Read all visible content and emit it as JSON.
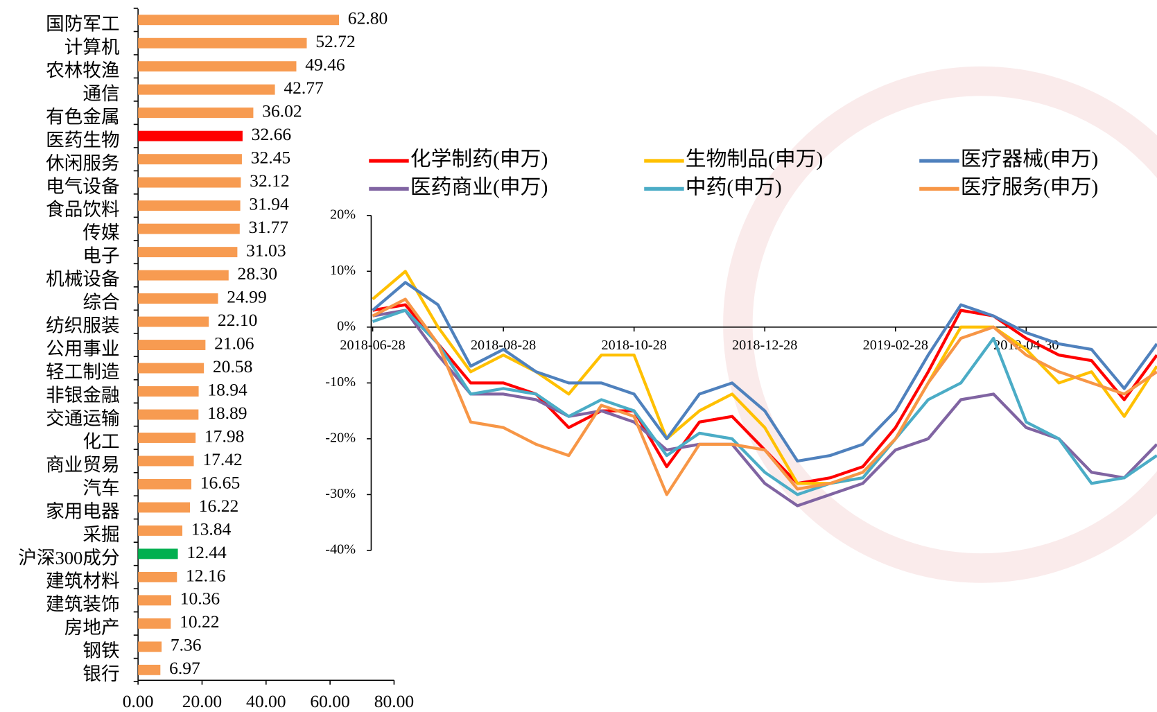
{
  "chart_data": [
    {
      "type": "hbar",
      "categories": [
        "国防军工",
        "计算机",
        "农林牧渔",
        "通信",
        "有色金属",
        "医药生物",
        "休闲服务",
        "电气设备",
        "食品饮料",
        "传媒",
        "电子",
        "机械设备",
        "综合",
        "纺织服装",
        "公用事业",
        "轻工制造",
        "非银金融",
        "交通运输",
        "化工",
        "商业贸易",
        "汽车",
        "家用电器",
        "采掘",
        "沪深300成分",
        "建筑材料",
        "建筑装饰",
        "房地产",
        "钢铁",
        "银行"
      ],
      "values": [
        62.8,
        52.72,
        49.46,
        42.77,
        36.02,
        32.66,
        32.45,
        32.12,
        31.94,
        31.77,
        31.03,
        28.3,
        24.99,
        22.1,
        21.06,
        20.58,
        18.94,
        18.89,
        17.98,
        17.42,
        16.65,
        16.22,
        13.84,
        12.44,
        12.16,
        10.36,
        10.22,
        7.36,
        6.97
      ],
      "value_labels": [
        "62.80",
        "52.72",
        "49.46",
        "42.77",
        "36.02",
        "32.66",
        "32.45",
        "32.12",
        "31.94",
        "31.77",
        "31.03",
        "28.30",
        "24.99",
        "22.10",
        "21.06",
        "20.58",
        "18.94",
        "18.89",
        "17.98",
        "17.42",
        "16.65",
        "16.22",
        "13.84",
        "12.44",
        "12.16",
        "10.36",
        "10.22",
        "7.36",
        "6.97"
      ],
      "colors": [
        "#f79b51",
        "#f79b51",
        "#f79b51",
        "#f79b51",
        "#f79b51",
        "#ff0000",
        "#f79b51",
        "#f79b51",
        "#f79b51",
        "#f79b51",
        "#f79b51",
        "#f79b51",
        "#f79b51",
        "#f79b51",
        "#f79b51",
        "#f79b51",
        "#f79b51",
        "#f79b51",
        "#f79b51",
        "#f79b51",
        "#f79b51",
        "#f79b51",
        "#f79b51",
        "#00b050",
        "#f79b51",
        "#f79b51",
        "#f79b51",
        "#f79b51",
        "#f79b51"
      ],
      "xlim": [
        0,
        80
      ],
      "xticks": [
        {
          "value": 0,
          "label": "0.00"
        },
        {
          "value": 20,
          "label": "20.00"
        },
        {
          "value": 40,
          "label": "40.00"
        },
        {
          "value": 60,
          "label": "60.00"
        },
        {
          "value": 80,
          "label": "80.00"
        }
      ]
    },
    {
      "type": "line",
      "x": [
        "2018-06-28",
        "2018-07-13",
        "2018-07-28",
        "2018-08-13",
        "2018-08-28",
        "2018-09-13",
        "2018-09-28",
        "2018-10-13",
        "2018-10-28",
        "2018-11-13",
        "2018-11-28",
        "2018-12-13",
        "2018-12-28",
        "2019-01-13",
        "2019-01-28",
        "2019-02-13",
        "2019-02-28",
        "2019-03-13",
        "2019-03-28",
        "2019-04-13",
        "2019-04-30",
        "2019-05-13",
        "2019-05-28",
        "2019-06-13",
        "2019-06-28"
      ],
      "xticks": [
        "2018-06-28",
        "2018-08-28",
        "2018-10-28",
        "2018-12-28",
        "2019-02-28",
        "2019-04-30"
      ],
      "ylim": [
        -40,
        20
      ],
      "yticks": [
        {
          "value": -40,
          "label": "-40%"
        },
        {
          "value": -30,
          "label": "-30%"
        },
        {
          "value": -20,
          "label": "-20%"
        },
        {
          "value": -10,
          "label": "-10%"
        },
        {
          "value": 0,
          "label": "0%"
        },
        {
          "value": 10,
          "label": "10%"
        },
        {
          "value": 20,
          "label": "20%"
        }
      ],
      "series": [
        {
          "name": "化学制药(申万)",
          "color": "#ff0000",
          "values": [
            3,
            4,
            -3,
            -10,
            -10,
            -12,
            -18,
            -15,
            -15,
            -25,
            -17,
            -16,
            -22,
            -28,
            -27,
            -25,
            -18,
            -8,
            3,
            2,
            -2,
            -5,
            -6,
            -13,
            -5
          ]
        },
        {
          "name": "生物制品(申万)",
          "color": "#ffc000",
          "values": [
            5,
            10,
            0,
            -8,
            -5,
            -8,
            -12,
            -5,
            -5,
            -20,
            -15,
            -12,
            -18,
            -28,
            -28,
            -27,
            -20,
            -10,
            0,
            0,
            -4,
            -10,
            -8,
            -16,
            -7
          ]
        },
        {
          "name": "医疗器械(申万)",
          "color": "#4f81bd",
          "values": [
            3,
            8,
            4,
            -7,
            -4,
            -8,
            -10,
            -10,
            -12,
            -20,
            -12,
            -10,
            -15,
            -24,
            -23,
            -21,
            -15,
            -5,
            4,
            2,
            -1,
            -3,
            -4,
            -11,
            -3
          ]
        },
        {
          "name": "医药商业(申万)",
          "color": "#8064a2",
          "values": [
            2,
            3,
            -5,
            -12,
            -12,
            -13,
            -16,
            -15,
            -17,
            -22,
            -21,
            -21,
            -28,
            -32,
            -30,
            -28,
            -22,
            -20,
            -13,
            -12,
            -18,
            -20,
            -26,
            -27,
            -21
          ]
        },
        {
          "name": "中药(申万)",
          "color": "#4bacc6",
          "values": [
            1,
            3,
            -3,
            -12,
            -11,
            -12,
            -16,
            -13,
            -15,
            -23,
            -19,
            -20,
            -26,
            -30,
            -28,
            -27,
            -20,
            -13,
            -10,
            -2,
            -17,
            -20,
            -28,
            -27,
            -23
          ]
        },
        {
          "name": "医疗服务(申万)",
          "color": "#f79646",
          "values": [
            2,
            5,
            -3,
            -17,
            -18,
            -21,
            -23,
            -14,
            -16,
            -30,
            -21,
            -21,
            -22,
            -29,
            -28,
            -26,
            -20,
            -10,
            -2,
            0,
            -5,
            -8,
            -10,
            -12,
            -8
          ]
        }
      ]
    }
  ]
}
